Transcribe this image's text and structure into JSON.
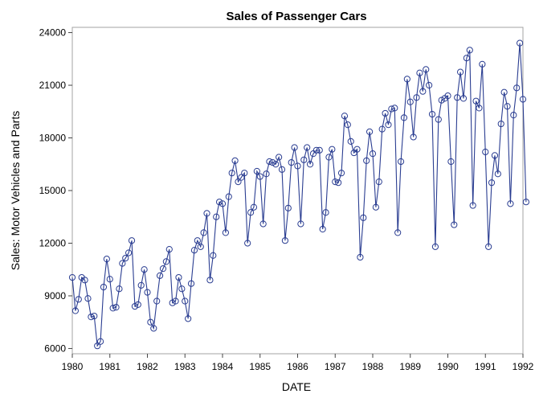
{
  "chart_data": {
    "type": "line",
    "title": "Sales of Passenger Cars",
    "xlabel": "DATE",
    "ylabel": "Sales: Motor Vehicles and Parts",
    "xlim": [
      1980.0,
      1992.0
    ],
    "ylim": [
      5700,
      24300
    ],
    "xticks": [
      1980,
      1981,
      1982,
      1983,
      1984,
      1985,
      1986,
      1987,
      1988,
      1989,
      1990,
      1991,
      1992
    ],
    "xtick_labels": [
      "1980",
      "1981",
      "1982",
      "1983",
      "1984",
      "1985",
      "1986",
      "1987",
      "1988",
      "1989",
      "1990",
      "1991",
      "1992"
    ],
    "yticks": [
      6000,
      9000,
      12000,
      15000,
      18000,
      21000,
      24000
    ],
    "ytick_labels": [
      "6000",
      "9000",
      "12000",
      "15000",
      "18000",
      "21000",
      "24000"
    ],
    "grid": false,
    "legend": false,
    "series": [
      {
        "color": "#2a3d91",
        "marker": "circle",
        "x_start": "1980-01",
        "frequency": "monthly",
        "values": [
          10050,
          8150,
          8800,
          10050,
          9900,
          8850,
          7800,
          7850,
          6150,
          6400,
          9500,
          11100,
          9950,
          8300,
          8350,
          9400,
          10850,
          11150,
          11450,
          12150,
          8400,
          8500,
          9600,
          10500,
          9200,
          7500,
          7150,
          8700,
          10150,
          10550,
          10950,
          11650,
          8600,
          8700,
          10050,
          9400,
          8700,
          7700,
          9700,
          11600,
          12150,
          11800,
          12600,
          13700,
          9900,
          11300,
          13500,
          14350,
          14250,
          12600,
          14650,
          16000,
          16700,
          15500,
          15750,
          16000,
          12000,
          13750,
          14050,
          16100,
          15800,
          13100,
          15950,
          16650,
          16600,
          16500,
          16900,
          16200,
          12150,
          14000,
          16600,
          17450,
          16400,
          13100,
          16750,
          17450,
          16500,
          17100,
          17300,
          17300,
          12800,
          13750,
          16900,
          17350,
          15500,
          15450,
          16000,
          19250,
          18750,
          17800,
          17150,
          17350,
          11200,
          13450,
          16700,
          18350,
          17100,
          14050,
          15500,
          18500,
          19400,
          18750,
          19650,
          19700,
          12600,
          16650,
          19150,
          21350,
          20050,
          18050,
          20300,
          21700,
          20650,
          21900,
          21000,
          19350,
          11800,
          19050,
          20150,
          20250,
          20400,
          16650,
          13050,
          20300,
          21750,
          20250,
          22550,
          23000,
          14150,
          20100,
          19700,
          22200,
          17200,
          11800,
          15450,
          17000,
          15950,
          18800,
          20600,
          19800,
          14250,
          19300,
          20850,
          23400,
          20200,
          14350
        ]
      }
    ]
  }
}
